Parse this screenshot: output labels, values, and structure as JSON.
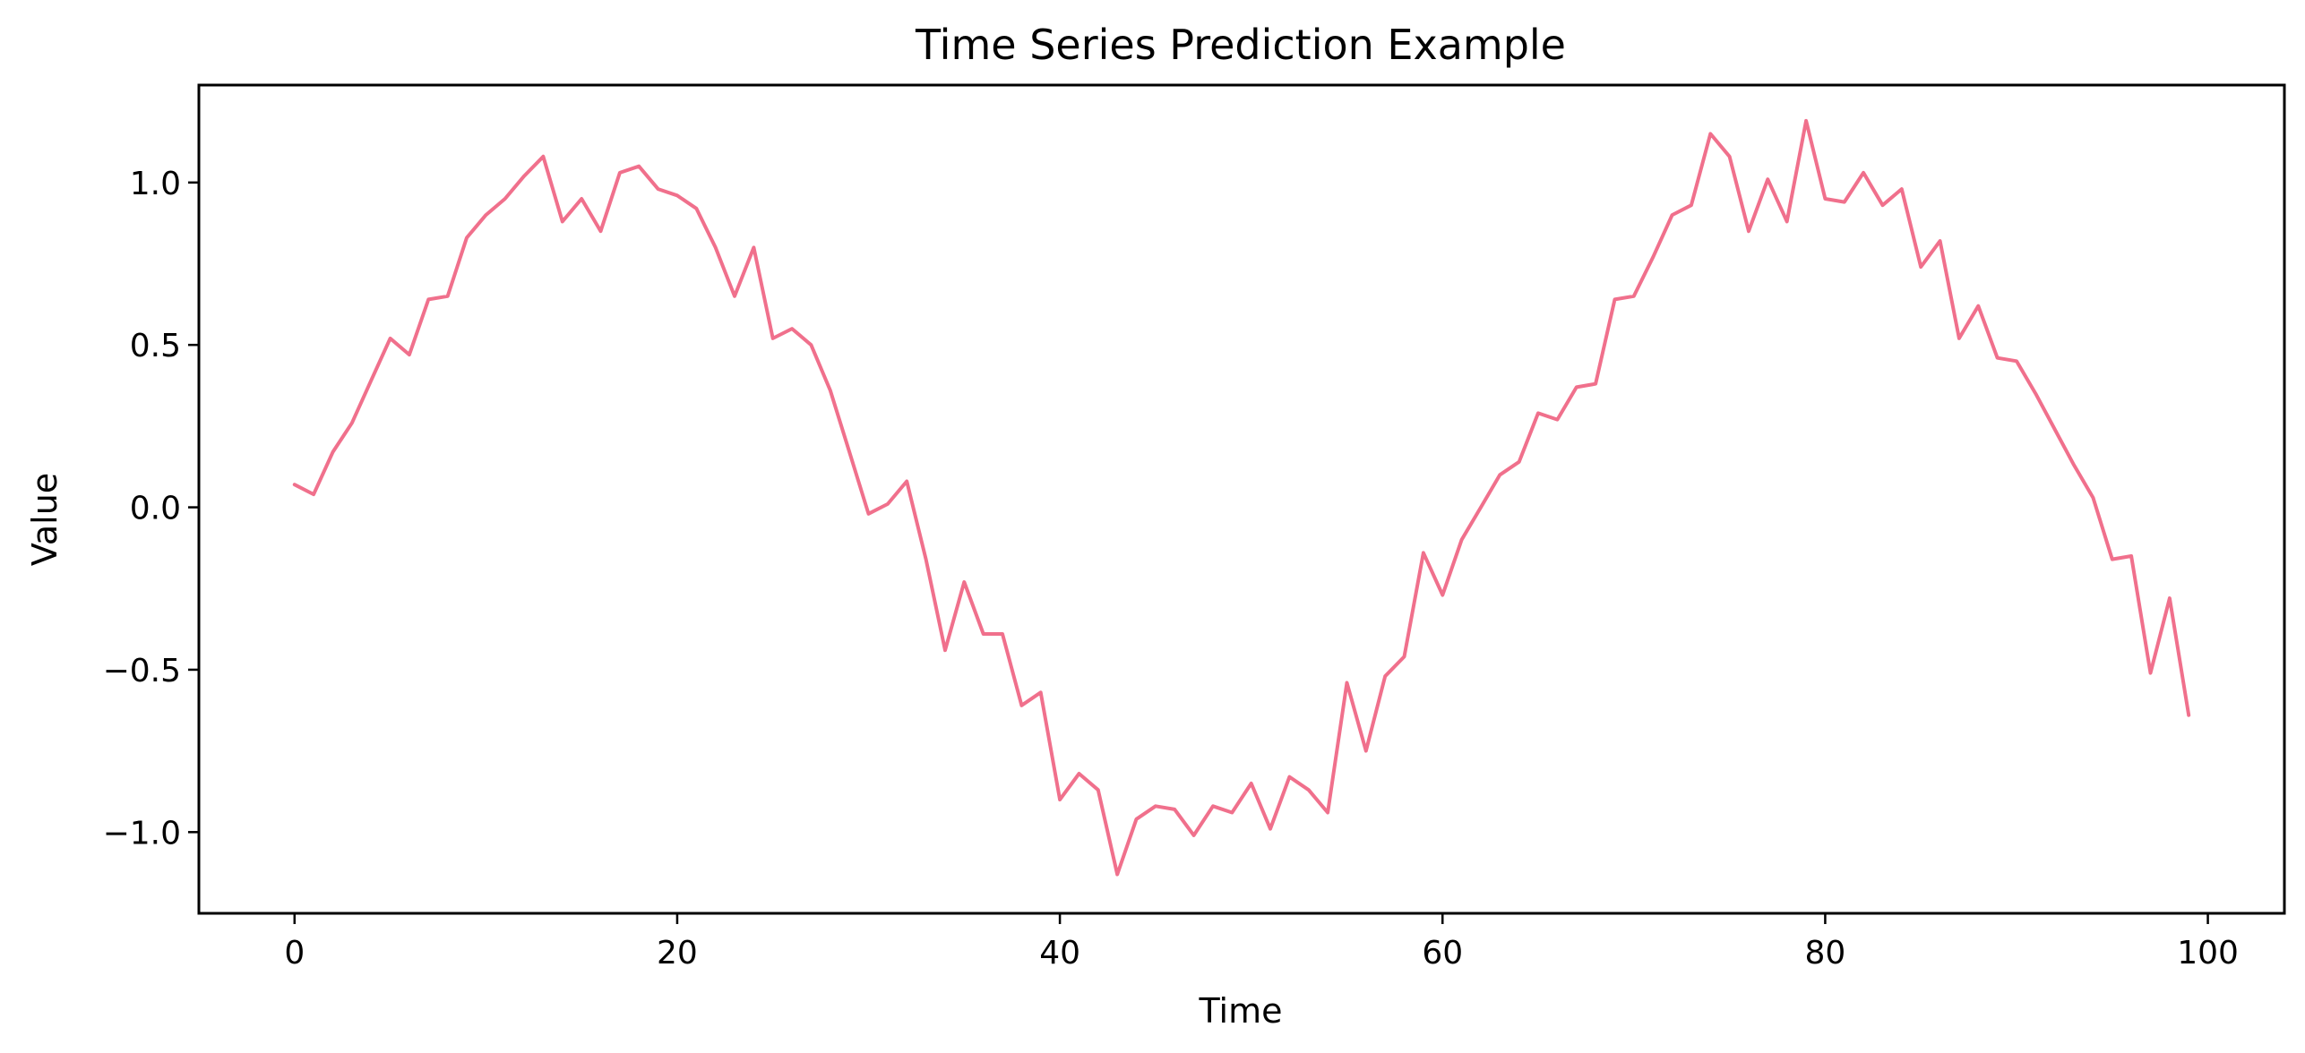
{
  "chart_data": {
    "type": "line",
    "title": "Time Series Prediction Example",
    "xlabel": "Time",
    "ylabel": "Value",
    "xlim": [
      -5,
      104
    ],
    "ylim": [
      -1.25,
      1.3
    ],
    "xticks": [
      0,
      20,
      40,
      60,
      80,
      100
    ],
    "xtick_labels": [
      "0",
      "20",
      "40",
      "60",
      "80",
      "100"
    ],
    "yticks": [
      -1.0,
      -0.5,
      0.0,
      0.5,
      1.0
    ],
    "ytick_labels": [
      "−1.0",
      "−0.5",
      "0.0",
      "0.5",
      "1.0"
    ],
    "grid": false,
    "legend": "none",
    "series": [
      {
        "color": "#f0708c",
        "x": [
          0,
          1,
          2,
          3,
          4,
          5,
          6,
          7,
          8,
          9,
          10,
          11,
          12,
          13,
          14,
          15,
          16,
          17,
          18,
          19,
          20,
          21,
          22,
          23,
          24,
          25,
          26,
          27,
          28,
          29,
          30,
          31,
          32,
          33,
          34,
          35,
          36,
          37,
          38,
          39,
          40,
          41,
          42,
          43,
          44,
          45,
          46,
          47,
          48,
          49,
          50,
          51,
          52,
          53,
          54,
          55,
          56,
          57,
          58,
          59,
          60,
          61,
          62,
          63,
          64,
          65,
          66,
          67,
          68,
          69,
          70,
          71,
          72,
          73,
          74,
          75,
          76,
          77,
          78,
          79,
          80,
          81,
          82,
          83,
          84,
          85,
          86,
          87,
          88,
          89,
          90,
          91,
          92,
          93,
          94,
          95,
          96,
          97,
          98,
          99
        ],
        "y": [
          0.07,
          0.04,
          0.17,
          0.26,
          0.39,
          0.52,
          0.47,
          0.64,
          0.65,
          0.83,
          0.9,
          0.95,
          1.02,
          1.08,
          0.88,
          0.95,
          0.85,
          1.03,
          1.05,
          0.98,
          0.96,
          0.92,
          0.8,
          0.65,
          0.8,
          0.52,
          0.55,
          0.5,
          0.36,
          0.17,
          -0.02,
          0.01,
          0.08,
          -0.16,
          -0.44,
          -0.23,
          -0.39,
          -0.39,
          -0.61,
          -0.57,
          -0.9,
          -0.82,
          -0.87,
          -1.13,
          -0.96,
          -0.92,
          -0.93,
          -1.01,
          -0.92,
          -0.94,
          -0.85,
          -0.99,
          -0.83,
          -0.87,
          -0.94,
          -0.54,
          -0.75,
          -0.52,
          -0.46,
          -0.14,
          -0.27,
          -0.1,
          0.0,
          0.1,
          0.14,
          0.29,
          0.27,
          0.37,
          0.38,
          0.64,
          0.65,
          0.77,
          0.9,
          0.93,
          1.15,
          1.08,
          0.85,
          1.01,
          0.88,
          1.19,
          0.95,
          0.94,
          1.03,
          0.93,
          0.98,
          0.74,
          0.82,
          0.52,
          0.62,
          0.46,
          0.45,
          0.35,
          0.24,
          0.13,
          0.03,
          -0.16,
          -0.15,
          -0.51,
          -0.28,
          -0.64
        ]
      }
    ]
  }
}
